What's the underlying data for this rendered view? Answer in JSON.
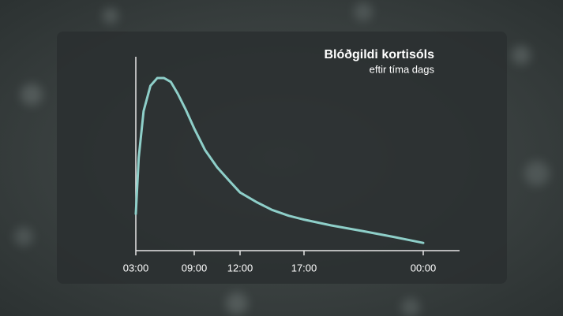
{
  "chart_data": {
    "type": "line",
    "title": "Blóðgildi kortisóls",
    "subtitle": "eftir tíma dags",
    "x": [
      0,
      0.3,
      0.8,
      1.5,
      2.2,
      2.9,
      3.6,
      4.3,
      5.1,
      6,
      6.7,
      7.5,
      8.3,
      9,
      10.3,
      11.5,
      12.8,
      14,
      15.6,
      17.5,
      19.3,
      21
    ],
    "values": [
      19,
      48,
      72,
      85,
      89,
      89,
      87,
      81,
      73,
      63,
      52,
      43,
      36,
      30,
      25,
      21,
      18,
      16,
      13,
      10,
      7,
      4
    ],
    "color": "#8ecfc9",
    "xlim": [
      0,
      24
    ],
    "xticks": [
      {
        "value": 0,
        "label": "03:00"
      },
      {
        "value": 6,
        "label": "09:00"
      },
      {
        "value": 9,
        "label": "12:00"
      },
      {
        "value": 14,
        "label": "17:00"
      },
      {
        "value": 21,
        "label": "00:00"
      }
    ],
    "ylim": [
      0,
      100
    ]
  }
}
